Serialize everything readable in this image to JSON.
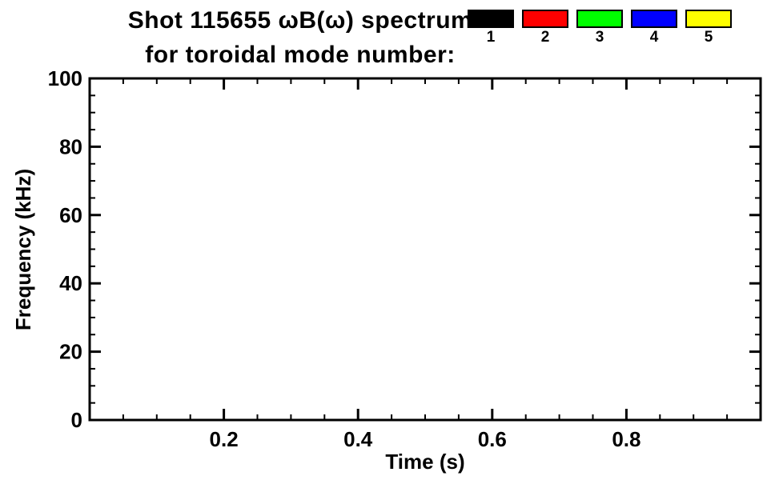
{
  "header": {
    "line1": "Shot 115655 ωB(ω) spectrum",
    "line2": "for toroidal mode number:"
  },
  "legend": {
    "items": [
      {
        "label": "1",
        "color": "#000000"
      },
      {
        "label": "2",
        "color": "#ff0000"
      },
      {
        "label": "3",
        "color": "#00ff00"
      },
      {
        "label": "4",
        "color": "#0000ff"
      },
      {
        "label": "5",
        "color": "#ffff00"
      }
    ]
  },
  "chart_data": {
    "type": "scatter",
    "title": "Shot 115655 ωB(ω) spectrum for toroidal mode number:",
    "xlabel": "Time (s)",
    "ylabel": "Frequency (kHz)",
    "xlim": [
      0.0,
      1.0
    ],
    "ylim": [
      0,
      100
    ],
    "xticks": [
      0.2,
      0.4,
      0.6,
      0.8
    ],
    "xtick_labels": [
      "0.2",
      "0.4",
      "0.6",
      "0.8"
    ],
    "yticks": [
      0,
      20,
      40,
      60,
      80,
      100
    ],
    "ytick_labels": [
      "0",
      "20",
      "40",
      "60",
      "80",
      "100"
    ],
    "x_minor_step": 0.05,
    "y_minor_step": 5,
    "grid": false,
    "legend_position": "top-right",
    "legend_entries": [
      "1",
      "2",
      "3",
      "4",
      "5"
    ],
    "legend_colors": [
      "#000000",
      "#ff0000",
      "#00ff00",
      "#0000ff",
      "#ffff00"
    ],
    "series": []
  }
}
